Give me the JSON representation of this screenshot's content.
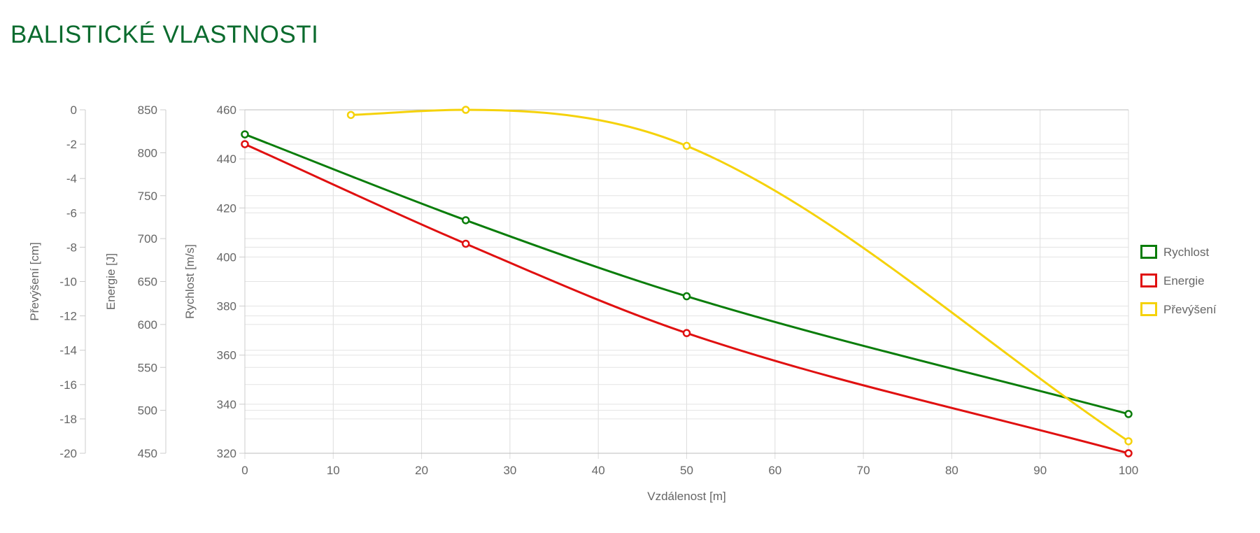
{
  "page": {
    "title": "BALISTICKÉ VLASTNOSTI"
  },
  "chart_data": {
    "type": "line",
    "x": [
      0,
      25,
      50,
      100
    ],
    "xlabel": "Vzdálenost [m]",
    "xlim": [
      0,
      100
    ],
    "xticks": [
      "0",
      "10",
      "20",
      "30",
      "40",
      "50",
      "60",
      "70",
      "80",
      "90",
      "100"
    ],
    "grid": true,
    "legend_position": "right",
    "axes": [
      {
        "id": "speed",
        "label": "Rychlost [m/s]",
        "range": [
          320,
          460
        ],
        "ticks": [
          "320",
          "340",
          "360",
          "380",
          "400",
          "420",
          "440",
          "460"
        ]
      },
      {
        "id": "energy",
        "label": "Energie [J]",
        "range": [
          450,
          850
        ],
        "ticks": [
          "450",
          "500",
          "550",
          "600",
          "650",
          "700",
          "750",
          "800",
          "850"
        ]
      },
      {
        "id": "drop",
        "label": "Převýšení [cm]",
        "range": [
          -20,
          0
        ],
        "ticks": [
          "-20",
          "-18",
          "-16",
          "-14",
          "-12",
          "-10",
          "-8",
          "-6",
          "-4",
          "-2",
          "0"
        ]
      }
    ],
    "series": [
      {
        "name": "Rychlost",
        "axis": "speed",
        "color": "#0a7d0a",
        "points": [
          [
            0,
            450
          ],
          [
            25,
            415
          ],
          [
            50,
            384
          ],
          [
            100,
            336
          ]
        ]
      },
      {
        "name": "Energie",
        "axis": "energy",
        "color": "#e01010",
        "points": [
          [
            0,
            810
          ],
          [
            25,
            694
          ],
          [
            50,
            590
          ],
          [
            100,
            450
          ]
        ]
      },
      {
        "name": "Převýšení",
        "axis": "drop",
        "color": "#f5d20a",
        "points": [
          [
            12,
            -0.3
          ],
          [
            25,
            0
          ],
          [
            50,
            -2.1
          ],
          [
            100,
            -19.3
          ]
        ]
      }
    ]
  }
}
